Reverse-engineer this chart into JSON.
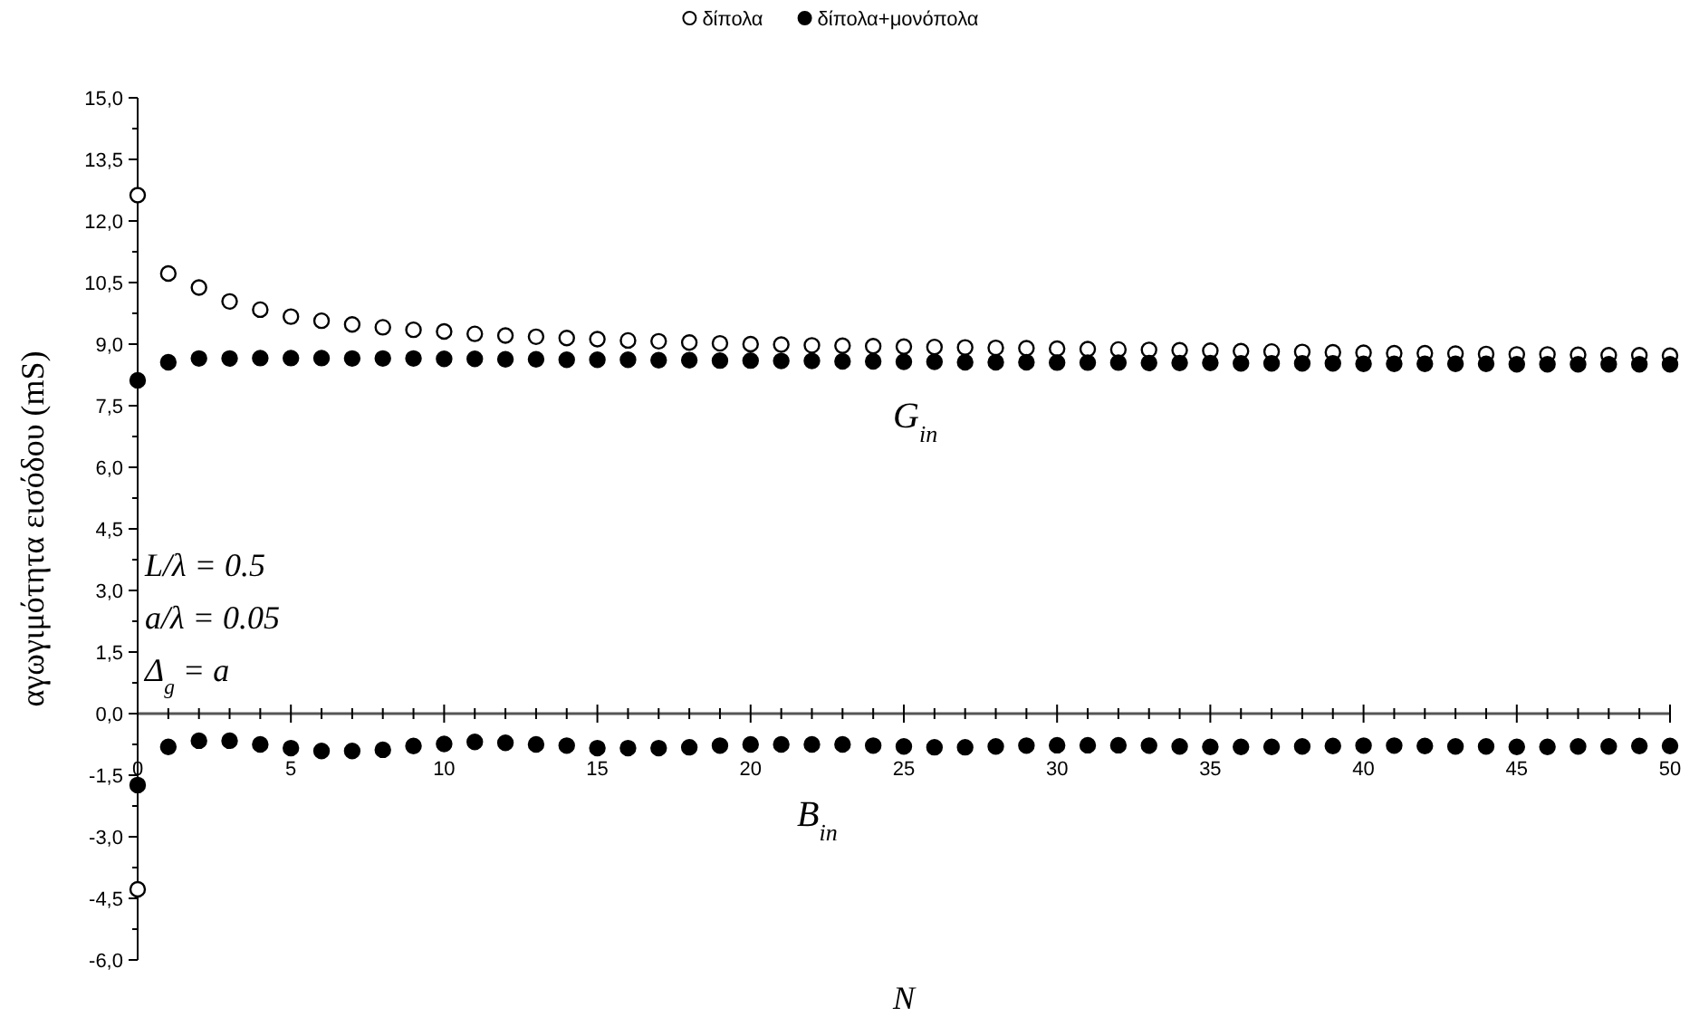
{
  "chart_data": {
    "type": "scatter",
    "xlabel": "N",
    "ylabel": "αγωγιμότητα εισόδου (mS)",
    "x": [
      0,
      1,
      2,
      3,
      4,
      5,
      6,
      7,
      8,
      9,
      10,
      11,
      12,
      13,
      14,
      15,
      16,
      17,
      18,
      19,
      20,
      21,
      22,
      23,
      24,
      25,
      26,
      27,
      28,
      29,
      30,
      31,
      32,
      33,
      34,
      35,
      36,
      37,
      38,
      39,
      40,
      41,
      42,
      43,
      44,
      45,
      46,
      47,
      48,
      49,
      50
    ],
    "series": [
      {
        "name": "δίπολα",
        "color": "#ffffff",
        "values": [
          12.63,
          10.72,
          10.38,
          10.04,
          9.84,
          9.67,
          9.57,
          9.48,
          9.41,
          9.35,
          9.31,
          9.25,
          9.21,
          9.18,
          9.15,
          9.12,
          9.09,
          9.07,
          9.04,
          9.02,
          9.0,
          8.99,
          8.97,
          8.96,
          8.95,
          8.94,
          8.93,
          8.92,
          8.91,
          8.9,
          8.89,
          8.88,
          8.87,
          8.86,
          8.85,
          8.84,
          8.83,
          8.82,
          8.81,
          8.8,
          8.79,
          8.78,
          8.78,
          8.77,
          8.76,
          8.75,
          8.75,
          8.74,
          8.73,
          8.73,
          8.72
        ]
      },
      {
        "name": "δίπολα+μονόπολα",
        "color": "#000000",
        "values": [
          8.12,
          8.56,
          8.65,
          8.65,
          8.66,
          8.66,
          8.66,
          8.65,
          8.65,
          8.65,
          8.64,
          8.64,
          8.63,
          8.63,
          8.62,
          8.62,
          8.62,
          8.61,
          8.61,
          8.6,
          8.6,
          8.59,
          8.59,
          8.58,
          8.58,
          8.57,
          8.57,
          8.56,
          8.56,
          8.56,
          8.55,
          8.55,
          8.55,
          8.54,
          8.54,
          8.54,
          8.53,
          8.53,
          8.53,
          8.53,
          8.52,
          8.52,
          8.52,
          8.52,
          8.52,
          8.51,
          8.51,
          8.51,
          8.51,
          8.51,
          8.51
        ]
      },
      {
        "color": "#ffffff",
        "values": [
          -4.28,
          null,
          null,
          null,
          null,
          null,
          null,
          null,
          null,
          null,
          null,
          null,
          null,
          null,
          null,
          null,
          null,
          null,
          null,
          null,
          null,
          null,
          null,
          null,
          null,
          null,
          null,
          null,
          null,
          null,
          null,
          null,
          null,
          null,
          null,
          null,
          null,
          null,
          null,
          null,
          null,
          null,
          null,
          null,
          null,
          null,
          null,
          null,
          null,
          null,
          null
        ]
      },
      {
        "color": "#000000",
        "values": [
          -1.74,
          -0.81,
          -0.66,
          -0.66,
          -0.75,
          -0.84,
          -0.91,
          -0.91,
          -0.88,
          -0.79,
          -0.74,
          -0.69,
          -0.71,
          -0.75,
          -0.78,
          -0.84,
          -0.84,
          -0.84,
          -0.82,
          -0.78,
          -0.75,
          -0.75,
          -0.75,
          -0.75,
          -0.78,
          -0.8,
          -0.82,
          -0.82,
          -0.8,
          -0.78,
          -0.77,
          -0.77,
          -0.77,
          -0.78,
          -0.8,
          -0.81,
          -0.81,
          -0.81,
          -0.8,
          -0.79,
          -0.78,
          -0.78,
          -0.79,
          -0.8,
          -0.8,
          -0.81,
          -0.81,
          -0.8,
          -0.8,
          -0.79,
          -0.79
        ]
      }
    ],
    "xlim": [
      0,
      50
    ],
    "xticks": [
      0,
      5,
      10,
      15,
      20,
      25,
      30,
      35,
      40,
      45,
      50
    ],
    "ylim": [
      -6,
      15
    ],
    "yticks": [
      {
        "value": -6,
        "label": "-6,0"
      },
      {
        "value": -4.5,
        "label": "-4,5"
      },
      {
        "value": -3,
        "label": "-3,0"
      },
      {
        "value": -1.5,
        "label": "-1,5"
      },
      {
        "value": 0,
        "label": "0,0"
      },
      {
        "value": 1.5,
        "label": "1,5"
      },
      {
        "value": 3,
        "label": "3,0"
      },
      {
        "value": 4.5,
        "label": "4,5"
      },
      {
        "value": 6,
        "label": "6,0"
      },
      {
        "value": 7.5,
        "label": "7,5"
      },
      {
        "value": 9,
        "label": "9,0"
      },
      {
        "value": 10.5,
        "label": "10,5"
      },
      {
        "value": 12,
        "label": "12,0"
      },
      {
        "value": 13.5,
        "label": "13,5"
      },
      {
        "value": 15,
        "label": "15,0"
      }
    ],
    "annotations": [
      "G$_{in}$",
      "B$_{in}$",
      "L/λ = 0.5",
      "a/λ = 0.05",
      "Δ$_{g}$ = a"
    ],
    "marker": "circle",
    "grid": false,
    "legend": "top"
  }
}
